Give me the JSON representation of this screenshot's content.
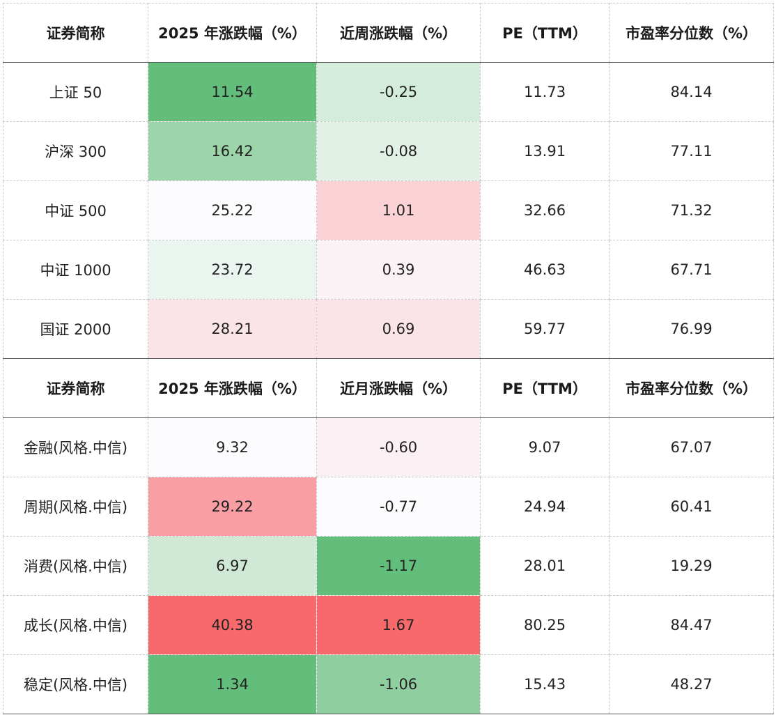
{
  "table1": {
    "headers": [
      "证券简称",
      "2025 年涨跌幅（%）",
      "近周涨跌幅（%）",
      "PE（TTM）",
      "市盈率分位数（%）"
    ],
    "rows": [
      {
        "name": "上证 50",
        "ytd": "11.54",
        "period": "-0.25",
        "pe": "11.73",
        "pct": "84.14",
        "ytd_color": "#63be7b",
        "period_color": "#d4ecdb"
      },
      {
        "name": "沪深 300",
        "ytd": "16.42",
        "period": "-0.08",
        "pe": "13.91",
        "pct": "77.11",
        "ytd_color": "#9dd5ab",
        "period_color": "#e2f1e6"
      },
      {
        "name": "中证 500",
        "ytd": "25.22",
        "period": "1.01",
        "pe": "32.66",
        "pct": "71.32",
        "ytd_color": "#fcfcff",
        "period_color": "#fad2d5"
      },
      {
        "name": "中证 1000",
        "ytd": "23.72",
        "period": "0.39",
        "pe": "46.63",
        "pct": "67.71",
        "ytd_color": "#ebf5ef",
        "period_color": "#faf2f4"
      },
      {
        "name": "国证 2000",
        "ytd": "28.21",
        "period": "0.69",
        "pe": "59.77",
        "pct": "76.99",
        "ytd_color": "#fbe4e7",
        "period_color": "#fbe4e7"
      }
    ]
  },
  "table2": {
    "headers": [
      "证券简称",
      "2025 年涨跌幅（%）",
      "近月涨跌幅（%）",
      "PE（TTM）",
      "市盈率分位数（%）"
    ],
    "rows": [
      {
        "name": "金融(风格.中信)",
        "ytd": "9.32",
        "period": "-0.60",
        "pe": "9.07",
        "pct": "67.07",
        "ytd_color": "#fcfcff",
        "period_color": "#fbf0f3"
      },
      {
        "name": "周期(风格.中信)",
        "ytd": "29.22",
        "period": "-0.77",
        "pe": "24.94",
        "pct": "60.41",
        "ytd_color": "#f99ea3",
        "period_color": "#fcfcff"
      },
      {
        "name": "消费(风格.中信)",
        "ytd": "6.97",
        "period": "-1.17",
        "pe": "28.01",
        "pct": "19.29",
        "ytd_color": "#cfe9d6",
        "period_color": "#63be7b"
      },
      {
        "name": "成长(风格.中信)",
        "ytd": "40.38",
        "period": "1.67",
        "pe": "80.25",
        "pct": "84.47",
        "ytd_color": "#f8696b",
        "period_color": "#f8696b"
      },
      {
        "name": "稳定(风格.中信)",
        "ytd": "1.34",
        "period": "-1.06",
        "pe": "15.43",
        "pct": "48.27",
        "ytd_color": "#63be7b",
        "period_color": "#8fcf9f"
      }
    ]
  }
}
